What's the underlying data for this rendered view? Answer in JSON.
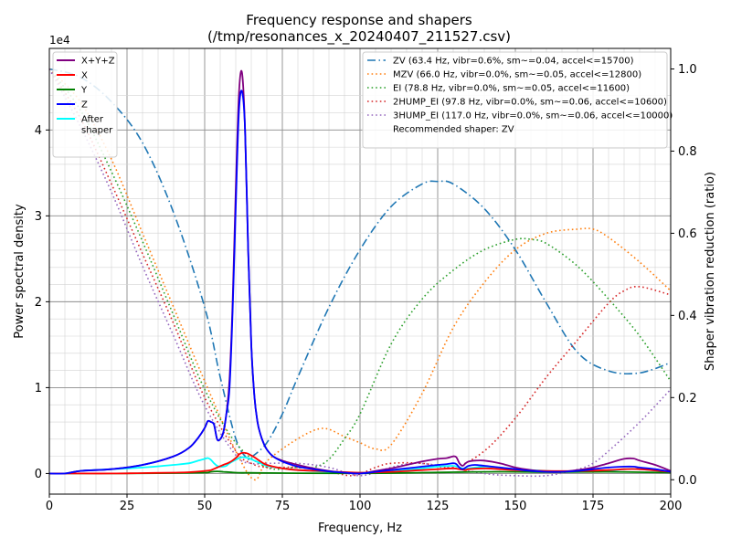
{
  "chart_data": {
    "type": "line",
    "title": "Frequency response and shapers",
    "subtitle": "(/tmp/resonances_x_20240407_211527.csv)",
    "xlabel": "Frequency, Hz",
    "ylabel": "Power spectral density",
    "ylabel_right": "Shaper vibration reduction (ratio)",
    "y_multiplier": "1e4",
    "xlim": [
      0,
      200
    ],
    "ylim": [
      -2400,
      49500
    ],
    "ylim_right": [
      -0.035,
      1.05
    ],
    "xticks": [
      "0",
      "25",
      "50",
      "75",
      "100",
      "125",
      "150",
      "175",
      "200"
    ],
    "yticks": [
      "0",
      "1",
      "2",
      "3",
      "4"
    ],
    "yticks_right": [
      "0.0",
      "0.2",
      "0.4",
      "0.6",
      "0.8",
      "1.0"
    ],
    "grid": true,
    "psd_legend_position": "top-left",
    "shaper_legend_position": "top-right",
    "psd_series": [
      {
        "name": "X+Y+Z",
        "color": "#800080",
        "style": "solid",
        "x": [
          0,
          5,
          10,
          20,
          30,
          40,
          45,
          48,
          50,
          51,
          52,
          53,
          54,
          55,
          56,
          57,
          58,
          59,
          60,
          61,
          62,
          63,
          64,
          65,
          66,
          67,
          68,
          69,
          70,
          72,
          75,
          80,
          85,
          90,
          95,
          100,
          105,
          110,
          115,
          120,
          125,
          128,
          130,
          131,
          132,
          133,
          134,
          135,
          137,
          140,
          145,
          150,
          155,
          160,
          165,
          170,
          175,
          180,
          185,
          188,
          190,
          195,
          200
        ],
        "y": [
          0,
          0,
          300,
          500,
          1000,
          2000,
          3000,
          4200,
          5300,
          6100,
          6000,
          5700,
          4000,
          4000,
          4800,
          7000,
          11000,
          20000,
          33000,
          44000,
          46700,
          40000,
          26000,
          15000,
          9000,
          6000,
          4500,
          3500,
          2800,
          2000,
          1500,
          1000,
          600,
          300,
          100,
          0,
          300,
          600,
          1000,
          1400,
          1700,
          1800,
          2000,
          1900,
          1200,
          900,
          1200,
          1400,
          1500,
          1500,
          1200,
          700,
          400,
          200,
          200,
          400,
          700,
          1200,
          1700,
          1750,
          1500,
          1000,
          300
        ]
      },
      {
        "name": "X",
        "color": "#ff0000",
        "style": "solid",
        "x": [
          0,
          5,
          10,
          20,
          30,
          40,
          45,
          50,
          52,
          54,
          56,
          58,
          60,
          61,
          62,
          63,
          64,
          65,
          66,
          68,
          70,
          75,
          80,
          90,
          100,
          110,
          120,
          125,
          130,
          132,
          134,
          135,
          140,
          145,
          150,
          160,
          170,
          180,
          185,
          190,
          200
        ],
        "y": [
          0,
          0,
          0,
          0,
          50,
          100,
          150,
          300,
          400,
          700,
          1000,
          1300,
          1800,
          2200,
          2400,
          2400,
          2300,
          2100,
          1900,
          1400,
          1000,
          600,
          400,
          250,
          100,
          200,
          400,
          500,
          600,
          500,
          400,
          500,
          600,
          500,
          400,
          300,
          300,
          400,
          500,
          500,
          200
        ]
      },
      {
        "name": "Y",
        "color": "#008000",
        "style": "solid",
        "x": [
          0,
          5,
          10,
          20,
          40,
          50,
          52,
          54,
          56,
          58,
          60,
          62,
          64,
          70,
          80,
          100,
          120,
          130,
          140,
          150,
          160,
          180,
          200
        ],
        "y": [
          0,
          0,
          0,
          0,
          50,
          100,
          200,
          250,
          200,
          150,
          100,
          80,
          80,
          60,
          40,
          20,
          100,
          150,
          200,
          200,
          150,
          200,
          100
        ]
      },
      {
        "name": "Z",
        "color": "#0000ff",
        "style": "solid",
        "x": [
          0,
          5,
          10,
          20,
          30,
          40,
          45,
          48,
          50,
          51,
          52,
          53,
          54,
          55,
          56,
          57,
          58,
          59,
          60,
          61,
          62,
          63,
          64,
          65,
          66,
          67,
          68,
          69,
          70,
          72,
          75,
          80,
          85,
          90,
          95,
          100,
          105,
          110,
          115,
          120,
          125,
          128,
          130,
          131,
          132,
          133,
          134,
          135,
          137,
          140,
          145,
          150,
          155,
          160,
          165,
          170,
          175,
          180,
          185,
          188,
          190,
          195,
          200
        ],
        "y": [
          0,
          0,
          300,
          500,
          1000,
          2000,
          3000,
          4200,
          5300,
          6100,
          6000,
          5700,
          4000,
          4000,
          4800,
          7000,
          10000,
          19000,
          31000,
          42000,
          44500,
          40000,
          26000,
          15000,
          9000,
          6000,
          4500,
          3500,
          2800,
          2000,
          1400,
          800,
          500,
          250,
          100,
          0,
          200,
          400,
          600,
          800,
          1000,
          1100,
          1200,
          1100,
          700,
          500,
          700,
          900,
          1000,
          900,
          700,
          500,
          300,
          200,
          200,
          300,
          500,
          700,
          800,
          800,
          700,
          500,
          200
        ]
      },
      {
        "name": "After shaper",
        "color": "#00ffff",
        "style": "solid",
        "x": [
          0,
          5,
          10,
          20,
          30,
          40,
          45,
          48,
          50,
          51,
          52,
          53,
          54,
          55,
          56,
          57,
          58,
          60,
          62,
          64,
          66,
          68,
          70,
          75,
          80,
          90,
          100,
          110,
          120,
          125,
          130,
          132,
          134,
          135,
          140,
          145,
          150,
          160,
          170,
          180,
          185,
          190,
          200
        ],
        "y": [
          0,
          0,
          300,
          500,
          700,
          1000,
          1200,
          1500,
          1700,
          1800,
          1600,
          1200,
          900,
          800,
          800,
          900,
          1200,
          1600,
          1900,
          1800,
          1500,
          1200,
          900,
          600,
          400,
          200,
          100,
          250,
          600,
          800,
          900,
          700,
          500,
          600,
          800,
          700,
          500,
          300,
          200,
          300,
          500,
          500,
          200
        ]
      }
    ],
    "shaper_series": [
      {
        "name": "ZV (63.4 Hz, vibr=0.6%, sm~=0.04, accel<=15700)",
        "color": "#1f77b4",
        "style": "dashdot",
        "x": [
          0,
          10,
          20,
          30,
          40,
          50,
          55,
          60,
          63.4,
          65,
          70,
          75,
          80,
          90,
          100,
          110,
          120,
          125,
          130,
          140,
          150,
          160,
          170,
          180,
          190,
          200
        ],
        "y": [
          1.0,
          0.98,
          0.92,
          0.82,
          0.65,
          0.42,
          0.25,
          0.1,
          0.054,
          0.055,
          0.09,
          0.16,
          0.25,
          0.42,
          0.56,
          0.665,
          0.72,
          0.726,
          0.72,
          0.66,
          0.56,
          0.43,
          0.31,
          0.265,
          0.26,
          0.285
        ]
      },
      {
        "name": "MZV (66.0 Hz, vibr=0.0%, sm~=0.05, accel<=12800)",
        "color": "#ff7f0e",
        "style": "dotted",
        "x": [
          0,
          10,
          20,
          30,
          40,
          50,
          60,
          66,
          70,
          80,
          88,
          95,
          100,
          105,
          110,
          120,
          130,
          140,
          150,
          160,
          170,
          175,
          180,
          190,
          200
        ],
        "y": [
          1.0,
          0.92,
          0.78,
          0.6,
          0.42,
          0.24,
          0.07,
          0.0,
          0.045,
          0.1,
          0.125,
          0.105,
          0.09,
          0.075,
          0.085,
          0.21,
          0.37,
          0.48,
          0.56,
          0.6,
          0.61,
          0.61,
          0.59,
          0.53,
          0.46
        ]
      },
      {
        "name": "EI (78.8 Hz, vibr=0.0%, sm~=0.05, accel<=11600)",
        "color": "#2ca02c",
        "style": "dotted",
        "x": [
          0,
          10,
          20,
          30,
          40,
          50,
          60,
          70,
          78.8,
          85,
          90,
          95,
          100,
          110,
          120,
          130,
          140,
          150,
          155,
          160,
          170,
          180,
          190,
          200
        ],
        "y": [
          1.0,
          0.9,
          0.75,
          0.58,
          0.4,
          0.22,
          0.09,
          0.03,
          0.03,
          0.03,
          0.05,
          0.1,
          0.16,
          0.33,
          0.44,
          0.51,
          0.56,
          0.585,
          0.585,
          0.575,
          0.52,
          0.44,
          0.35,
          0.24
        ]
      },
      {
        "name": "2HUMP_EI (97.8 Hz, vibr=0.0%, sm~=0.06, accel<=10600)",
        "color": "#d62728",
        "style": "dotted",
        "x": [
          0,
          10,
          20,
          30,
          40,
          50,
          60,
          65,
          70,
          80,
          90,
          97.8,
          105,
          110,
          120,
          130,
          140,
          150,
          160,
          170,
          180,
          185,
          190,
          200
        ],
        "y": [
          1.0,
          0.88,
          0.72,
          0.55,
          0.38,
          0.2,
          0.07,
          0.04,
          0.03,
          0.03,
          0.02,
          0.01,
          0.03,
          0.04,
          0.04,
          0.03,
          0.07,
          0.15,
          0.25,
          0.34,
          0.43,
          0.46,
          0.47,
          0.45
        ]
      },
      {
        "name": "3HUMP_EI (117.0 Hz, vibr=0.0%, sm~=0.06, accel<=10000)",
        "color": "#9467bd",
        "style": "dotted",
        "x": [
          0,
          10,
          20,
          30,
          40,
          50,
          60,
          65,
          70,
          80,
          90,
          100,
          110,
          117,
          125,
          140,
          150,
          160,
          170,
          175,
          180,
          190,
          200
        ],
        "y": [
          1.0,
          0.86,
          0.7,
          0.52,
          0.35,
          0.18,
          0.06,
          0.04,
          0.04,
          0.04,
          0.03,
          0.01,
          0.03,
          0.04,
          0.035,
          0.015,
          0.01,
          0.01,
          0.025,
          0.04,
          0.07,
          0.14,
          0.22
        ]
      }
    ],
    "recommended_text": "Recommended shaper: ZV"
  }
}
